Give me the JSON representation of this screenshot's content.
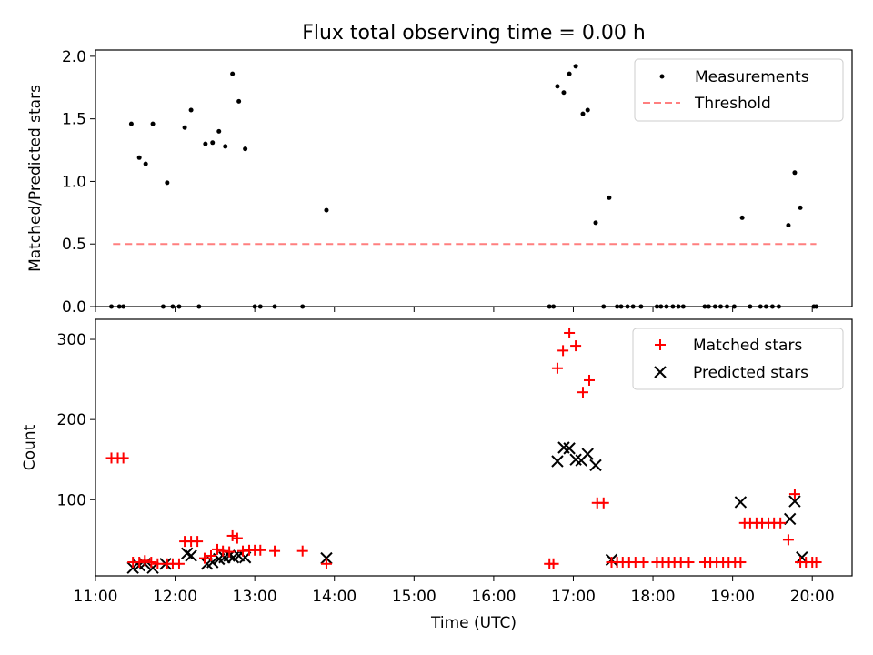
{
  "colors": {
    "measurement": "#000000",
    "threshold": "#ff7f7f",
    "matched": "#ff0000",
    "predicted": "#000000",
    "axes": "#000000"
  },
  "chart_data": [
    {
      "type": "scatter",
      "title": "Flux total observing time = 0.00 h",
      "xlabel": "",
      "ylabel": "Matched/Predicted stars",
      "xlim": [
        11.0,
        20.5
      ],
      "ylim": [
        0,
        2.05
      ],
      "yticks": [
        0.0,
        0.5,
        1.0,
        1.5,
        2.0
      ],
      "ytick_labels": [
        "0.0",
        "0.5",
        "1.0",
        "1.5",
        "2.0"
      ],
      "legend": {
        "position": "top-right",
        "entries": [
          "Measurements",
          "Threshold"
        ]
      },
      "series": [
        {
          "name": "Measurements",
          "marker": "dot",
          "points": [
            [
              11.2,
              0
            ],
            [
              11.3,
              0
            ],
            [
              11.35,
              0
            ],
            [
              11.45,
              1.46
            ],
            [
              11.55,
              1.19
            ],
            [
              11.63,
              1.14
            ],
            [
              11.72,
              1.46
            ],
            [
              11.85,
              0
            ],
            [
              11.9,
              0.99
            ],
            [
              11.97,
              0
            ],
            [
              12.05,
              0
            ],
            [
              12.12,
              1.43
            ],
            [
              12.2,
              1.57
            ],
            [
              12.3,
              0
            ],
            [
              12.38,
              1.3
            ],
            [
              12.47,
              1.31
            ],
            [
              12.55,
              1.4
            ],
            [
              12.63,
              1.28
            ],
            [
              12.72,
              1.86
            ],
            [
              12.8,
              1.64
            ],
            [
              12.88,
              1.26
            ],
            [
              13.0,
              0
            ],
            [
              13.07,
              0
            ],
            [
              13.25,
              0
            ],
            [
              13.6,
              0
            ],
            [
              13.9,
              0.77
            ],
            [
              16.7,
              0
            ],
            [
              16.75,
              0
            ],
            [
              16.8,
              1.76
            ],
            [
              16.88,
              1.71
            ],
            [
              16.95,
              1.86
            ],
            [
              17.03,
              1.92
            ],
            [
              17.12,
              1.54
            ],
            [
              17.18,
              1.57
            ],
            [
              17.28,
              0.67
            ],
            [
              17.38,
              0
            ],
            [
              17.45,
              0.87
            ],
            [
              17.55,
              0
            ],
            [
              17.6,
              0
            ],
            [
              17.68,
              0
            ],
            [
              17.75,
              0
            ],
            [
              17.85,
              0
            ],
            [
              18.05,
              0
            ],
            [
              18.1,
              0
            ],
            [
              18.17,
              0
            ],
            [
              18.25,
              0
            ],
            [
              18.32,
              0
            ],
            [
              18.38,
              0
            ],
            [
              18.65,
              0
            ],
            [
              18.7,
              0
            ],
            [
              18.78,
              0
            ],
            [
              18.85,
              0
            ],
            [
              18.93,
              0
            ],
            [
              19.02,
              0
            ],
            [
              19.12,
              0.71
            ],
            [
              19.22,
              0
            ],
            [
              19.35,
              0
            ],
            [
              19.42,
              0
            ],
            [
              19.5,
              0
            ],
            [
              19.58,
              0
            ],
            [
              19.7,
              0.65
            ],
            [
              19.78,
              1.07
            ],
            [
              19.85,
              0.79
            ],
            [
              20.02,
              0
            ],
            [
              20.05,
              0
            ]
          ]
        },
        {
          "name": "Threshold",
          "style": "dashed",
          "x": [
            11.22,
            20.05
          ],
          "y": [
            0.5,
            0.5
          ]
        }
      ]
    },
    {
      "type": "scatter",
      "title": "",
      "xlabel": "Time (UTC)",
      "ylabel": "Count",
      "xlim": [
        11.0,
        20.5
      ],
      "ylim": [
        5,
        325
      ],
      "yticks": [
        100,
        200,
        300
      ],
      "ytick_labels": [
        "100",
        "200",
        "300"
      ],
      "xticks": [
        11,
        12,
        13,
        14,
        15,
        16,
        17,
        18,
        19,
        20
      ],
      "xtick_labels": [
        "11:00",
        "12:00",
        "13:00",
        "14:00",
        "15:00",
        "16:00",
        "17:00",
        "18:00",
        "19:00",
        "20:00"
      ],
      "legend": {
        "position": "top-right",
        "entries": [
          "Matched stars",
          "Predicted stars"
        ]
      },
      "series": [
        {
          "name": "Matched stars",
          "marker": "plus",
          "points": [
            [
              11.2,
              152
            ],
            [
              11.28,
              152
            ],
            [
              11.35,
              152
            ],
            [
              11.47,
              22
            ],
            [
              11.55,
              22
            ],
            [
              11.62,
              24
            ],
            [
              11.7,
              22
            ],
            [
              11.78,
              20
            ],
            [
              11.9,
              20
            ],
            [
              11.97,
              20
            ],
            [
              12.05,
              20
            ],
            [
              12.12,
              48
            ],
            [
              12.2,
              48
            ],
            [
              12.28,
              48
            ],
            [
              12.37,
              27
            ],
            [
              12.45,
              30
            ],
            [
              12.53,
              38
            ],
            [
              12.6,
              36
            ],
            [
              12.68,
              35
            ],
            [
              12.72,
              55
            ],
            [
              12.78,
              52
            ],
            [
              12.85,
              36
            ],
            [
              12.93,
              37
            ],
            [
              13.0,
              37
            ],
            [
              13.07,
              37
            ],
            [
              13.25,
              36
            ],
            [
              13.6,
              36
            ],
            [
              13.9,
              20
            ],
            [
              16.7,
              20
            ],
            [
              16.75,
              20
            ],
            [
              16.8,
              264
            ],
            [
              16.87,
              286
            ],
            [
              16.95,
              308
            ],
            [
              17.03,
              292
            ],
            [
              17.12,
              234
            ],
            [
              17.2,
              249
            ],
            [
              17.3,
              96
            ],
            [
              17.38,
              96
            ],
            [
              17.48,
              22
            ],
            [
              17.55,
              22
            ],
            [
              17.62,
              22
            ],
            [
              17.7,
              22
            ],
            [
              17.78,
              22
            ],
            [
              17.88,
              22
            ],
            [
              18.05,
              22
            ],
            [
              18.12,
              22
            ],
            [
              18.2,
              22
            ],
            [
              18.27,
              22
            ],
            [
              18.35,
              22
            ],
            [
              18.45,
              22
            ],
            [
              18.65,
              22
            ],
            [
              18.72,
              22
            ],
            [
              18.8,
              22
            ],
            [
              18.88,
              22
            ],
            [
              18.95,
              22
            ],
            [
              19.03,
              22
            ],
            [
              19.1,
              22
            ],
            [
              19.15,
              71
            ],
            [
              19.22,
              71
            ],
            [
              19.3,
              71
            ],
            [
              19.37,
              71
            ],
            [
              19.45,
              71
            ],
            [
              19.52,
              71
            ],
            [
              19.6,
              71
            ],
            [
              19.7,
              50
            ],
            [
              19.78,
              107
            ],
            [
              19.85,
              22
            ],
            [
              19.92,
              22
            ],
            [
              20.0,
              22
            ],
            [
              20.05,
              22
            ]
          ]
        },
        {
          "name": "Predicted stars",
          "marker": "x",
          "points": [
            [
              11.47,
              15
            ],
            [
              11.55,
              18
            ],
            [
              11.62,
              20
            ],
            [
              11.72,
              15
            ],
            [
              11.88,
              20
            ],
            [
              12.15,
              33
            ],
            [
              12.2,
              30
            ],
            [
              12.4,
              20
            ],
            [
              12.47,
              22
            ],
            [
              12.55,
              26
            ],
            [
              12.62,
              28
            ],
            [
              12.68,
              30
            ],
            [
              12.73,
              28
            ],
            [
              12.8,
              30
            ],
            [
              12.88,
              28
            ],
            [
              13.9,
              27
            ],
            [
              16.8,
              148
            ],
            [
              16.88,
              165
            ],
            [
              16.95,
              164
            ],
            [
              17.03,
              150
            ],
            [
              17.1,
              149
            ],
            [
              17.18,
              157
            ],
            [
              17.28,
              143
            ],
            [
              17.48,
              25
            ],
            [
              19.1,
              97
            ],
            [
              19.72,
              76
            ],
            [
              19.78,
              98
            ],
            [
              19.87,
              28
            ]
          ]
        }
      ]
    }
  ]
}
